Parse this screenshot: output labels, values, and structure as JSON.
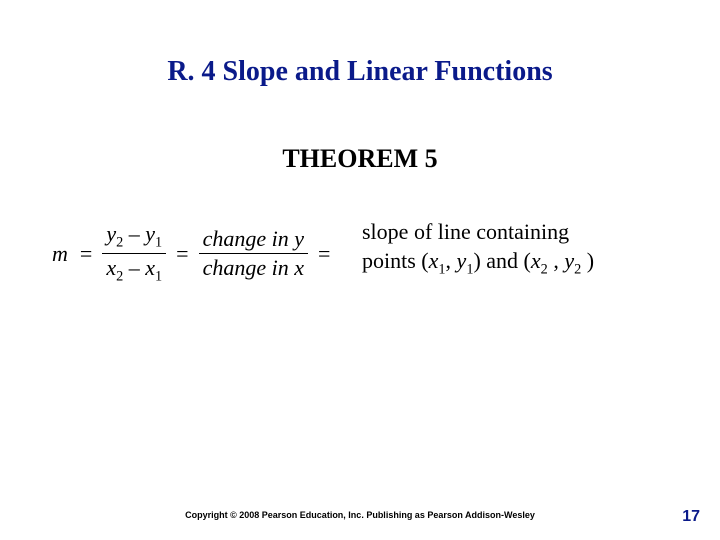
{
  "title": "R. 4 Slope and Linear Functions",
  "theorem_label": "THEOREM 5",
  "formula": {
    "lhs": "m",
    "eq": "=",
    "frac1_num_a": "y",
    "frac1_num_a_sub": "2",
    "frac1_num_op": " – ",
    "frac1_num_b": "y",
    "frac1_num_b_sub": "1",
    "frac1_den_a": "x",
    "frac1_den_a_sub": "2",
    "frac1_den_op": " – ",
    "frac1_den_b": "x",
    "frac1_den_b_sub": "1",
    "frac2_num": "change in y",
    "frac2_den": "change in x"
  },
  "desc": {
    "line1": "slope of line containing",
    "line2_a": "points (",
    "x": "x",
    "y": "y",
    "sub1": "1",
    "sub2": "2",
    "comma": ", ",
    "paren_close": ")",
    "and": " and (",
    "space": " ",
    "end": " )"
  },
  "copyright": "Copyright © 2008 Pearson Education, Inc.  Publishing as Pearson Addison-Wesley",
  "page_number": "17",
  "colors": {
    "title": "#0a1a8a",
    "text": "#000000",
    "background": "#ffffff"
  }
}
